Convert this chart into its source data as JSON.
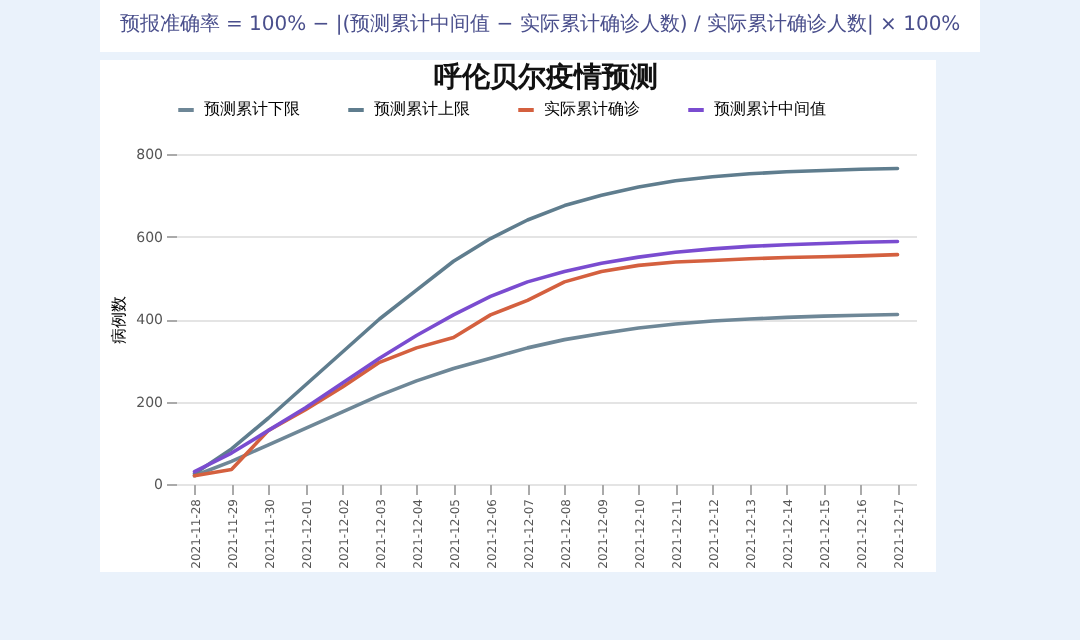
{
  "chart_data": {
    "type": "line",
    "title": "呼伦贝尔疫情预测",
    "ylabel": "病例数",
    "annotations": [
      "预报准确率 = 100% − |(预测累计中间值 − 实际累计确诊人数) / 实际累计确诊人数| × 100%"
    ],
    "categories": [
      "2021-11-28",
      "2021-11-29",
      "2021-11-30",
      "2021-12-01",
      "2021-12-02",
      "2021-12-03",
      "2021-12-04",
      "2021-12-05",
      "2021-12-06",
      "2021-12-07",
      "2021-12-08",
      "2021-12-09",
      "2021-12-10",
      "2021-12-11",
      "2021-12-12",
      "2021-12-13",
      "2021-12-14",
      "2021-12-15",
      "2021-12-16",
      "2021-12-17"
    ],
    "series": [
      {
        "name": "预测累计下限",
        "color": "#6e8797",
        "values": [
          20,
          55,
          95,
          135,
          175,
          215,
          250,
          280,
          305,
          330,
          350,
          365,
          378,
          388,
          395,
          400,
          404,
          407,
          409,
          411
        ]
      },
      {
        "name": "预测累计上限",
        "color": "#5f7d8e",
        "values": [
          25,
          85,
          160,
          240,
          320,
          400,
          470,
          540,
          595,
          640,
          675,
          700,
          720,
          735,
          745,
          752,
          757,
          760,
          763,
          765
        ]
      },
      {
        "name": "实际累计确诊",
        "color": "#d4603f",
        "values": [
          20,
          35,
          130,
          180,
          235,
          295,
          330,
          355,
          410,
          445,
          490,
          515,
          530,
          538,
          542,
          546,
          549,
          551,
          553,
          556
        ]
      },
      {
        "name": "预测累计中间值",
        "color": "#7a4cd0",
        "values": [
          30,
          75,
          130,
          185,
          245,
          305,
          360,
          410,
          455,
          490,
          515,
          535,
          550,
          562,
          570,
          576,
          580,
          583,
          586,
          588
        ]
      }
    ],
    "ylim": [
      0,
      800
    ],
    "yticks": [
      0,
      200,
      400,
      600,
      800
    ],
    "grid": "y",
    "legend": "top"
  }
}
